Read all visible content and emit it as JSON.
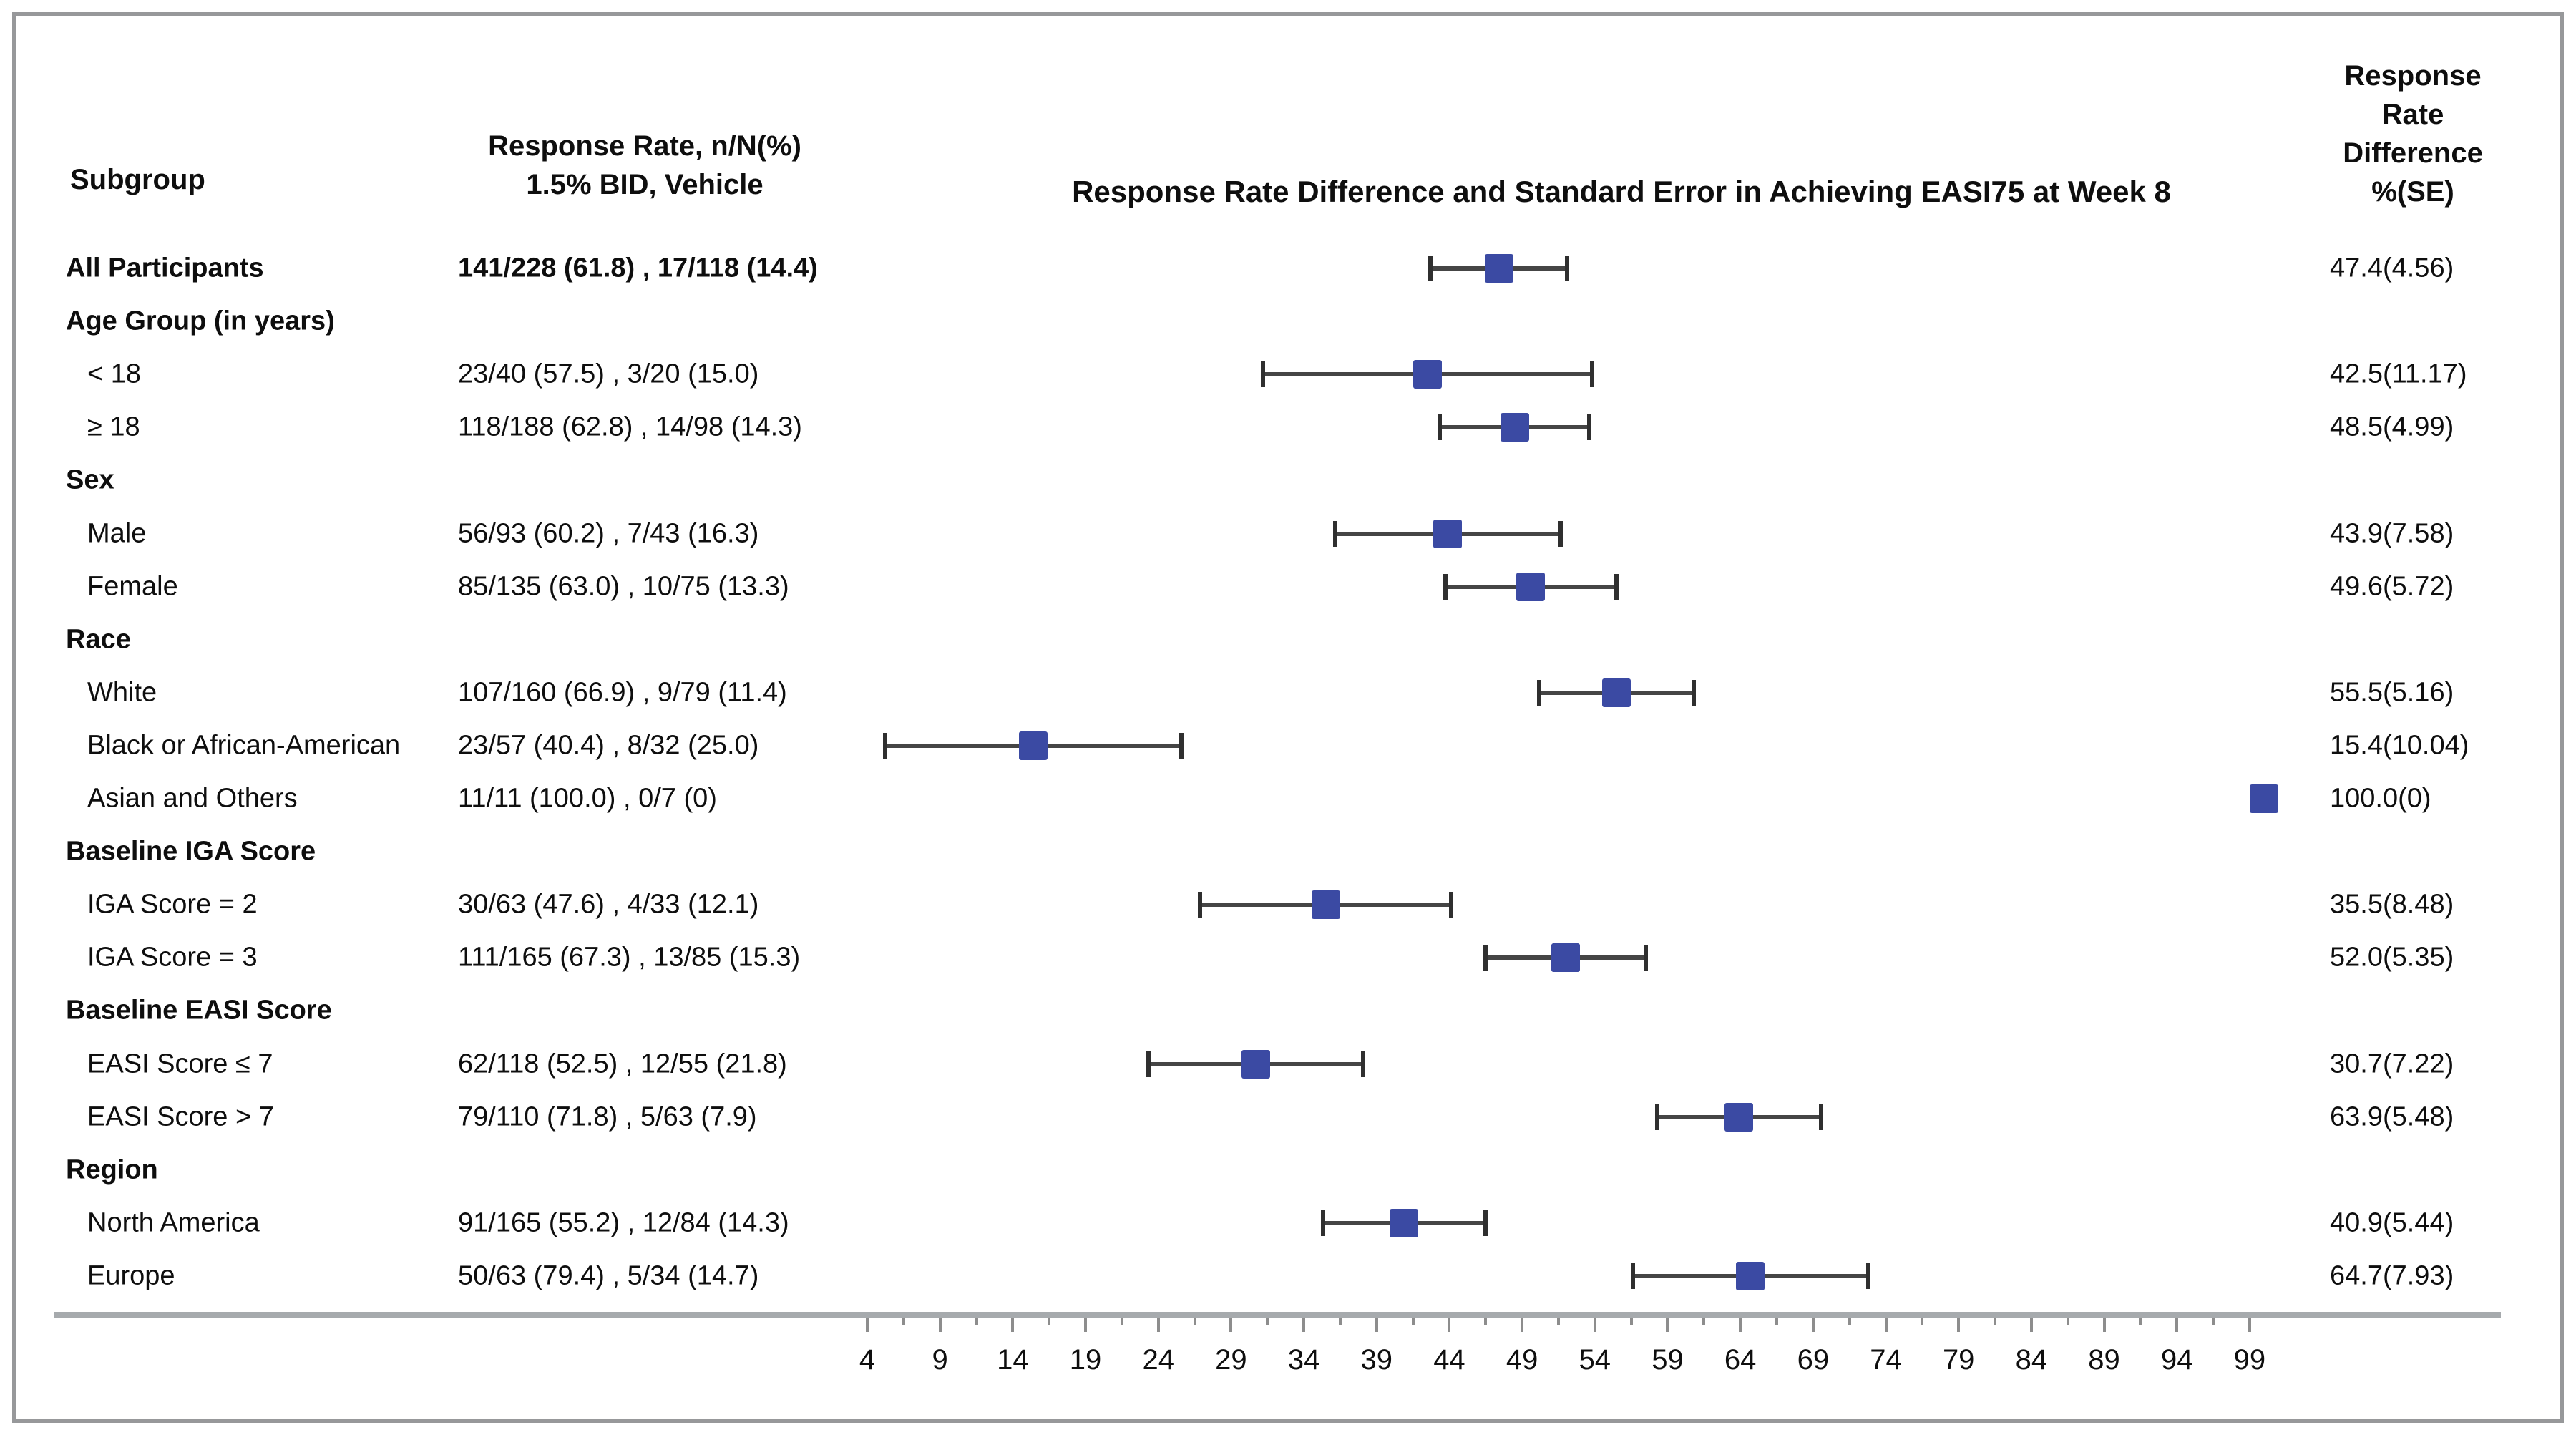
{
  "figure": {
    "headers": {
      "subgroup": "Subgroup",
      "rates_line1": "Response Rate, n/N(%)",
      "rates_line2": "1.5% BID, Vehicle",
      "plot_title": "Response Rate Difference and Standard Error in Achieving EASI75 at Week 8",
      "diff_lines": [
        "Response",
        "Rate",
        "Difference",
        "%(SE)"
      ]
    }
  },
  "chart_data": {
    "type": "forest",
    "title": "Response Rate Difference and Standard Error in Achieving EASI75 at Week 8",
    "columns": {
      "subgroup": "Subgroup",
      "rates": "Response Rate, n/N(%) 1.5% BID, Vehicle",
      "difference": "Response Rate Difference %(SE)"
    },
    "x_axis": {
      "ticks": [
        4,
        9,
        14,
        19,
        24,
        29,
        34,
        39,
        44,
        49,
        54,
        59,
        64,
        69,
        74,
        79,
        84,
        89,
        94,
        99
      ],
      "minor_ticks_at_midpoints": true,
      "plotted_range": [
        4,
        99
      ]
    },
    "error_bar_rule": "estimate ± 1 SE",
    "colors": {
      "marker": "#3b4aa3",
      "whisker": "#454545",
      "cap": "#2f2f2f",
      "axis_line": "#a6aaad",
      "tick": "#8d8d8d",
      "border": "#97989a",
      "text": "#0e0e0e"
    },
    "rows": [
      {
        "label": "All Participants",
        "type": "overall",
        "rates": "141/228 (61.8) , 17/118 (14.4)",
        "est": 47.4,
        "se": 4.56,
        "diff": "47.4(4.56)"
      },
      {
        "label": "Age Group (in years)",
        "type": "group",
        "rates": null,
        "est": null,
        "se": null,
        "diff": null
      },
      {
        "label": "< 18",
        "type": "item",
        "rates": "23/40 (57.5) , 3/20 (15.0)",
        "est": 42.5,
        "se": 11.17,
        "diff": "42.5(11.17)"
      },
      {
        "label": "≥ 18",
        "type": "item",
        "rates": "118/188 (62.8) , 14/98 (14.3)",
        "est": 48.5,
        "se": 4.99,
        "diff": "48.5(4.99)"
      },
      {
        "label": "Sex",
        "type": "group",
        "rates": null,
        "est": null,
        "se": null,
        "diff": null
      },
      {
        "label": "Male",
        "type": "item",
        "rates": "56/93 (60.2) , 7/43 (16.3)",
        "est": 43.9,
        "se": 7.58,
        "diff": "43.9(7.58)"
      },
      {
        "label": "Female",
        "type": "item",
        "rates": "85/135 (63.0) , 10/75 (13.3)",
        "est": 49.6,
        "se": 5.72,
        "diff": "49.6(5.72)"
      },
      {
        "label": "Race",
        "type": "group",
        "rates": null,
        "est": null,
        "se": null,
        "diff": null
      },
      {
        "label": "White",
        "type": "item",
        "rates": "107/160 (66.9) , 9/79 (11.4)",
        "est": 55.5,
        "se": 5.16,
        "diff": "55.5(5.16)"
      },
      {
        "label": "Black or African-American",
        "type": "item",
        "rates": "23/57 (40.4) , 8/32 (25.0)",
        "est": 15.4,
        "se": 10.04,
        "diff": "15.4(10.04)"
      },
      {
        "label": "Asian and Others",
        "type": "item",
        "rates": "11/11 (100.0) , 0/7 (0)",
        "est": 100.0,
        "se": 0,
        "diff": "100.0(0)"
      },
      {
        "label": "Baseline IGA Score",
        "type": "group",
        "rates": null,
        "est": null,
        "se": null,
        "diff": null
      },
      {
        "label": "IGA Score = 2",
        "type": "item",
        "rates": "30/63 (47.6) , 4/33 (12.1)",
        "est": 35.5,
        "se": 8.48,
        "diff": "35.5(8.48)"
      },
      {
        "label": "IGA Score = 3",
        "type": "item",
        "rates": "111/165 (67.3) , 13/85 (15.3)",
        "est": 52.0,
        "se": 5.35,
        "diff": "52.0(5.35)"
      },
      {
        "label": "Baseline EASI Score",
        "type": "group",
        "rates": null,
        "est": null,
        "se": null,
        "diff": null
      },
      {
        "label": "EASI Score ≤ 7",
        "type": "item",
        "rates": "62/118 (52.5) , 12/55 (21.8)",
        "est": 30.7,
        "se": 7.22,
        "diff": "30.7(7.22)"
      },
      {
        "label": "EASI Score > 7",
        "type": "item",
        "rates": "79/110 (71.8) , 5/63 (7.9)",
        "est": 63.9,
        "se": 5.48,
        "diff": "63.9(5.48)"
      },
      {
        "label": "Region",
        "type": "group",
        "rates": null,
        "est": null,
        "se": null,
        "diff": null
      },
      {
        "label": "North America",
        "type": "item",
        "rates": "91/165 (55.2) , 12/84 (14.3)",
        "est": 40.9,
        "se": 5.44,
        "diff": "40.9(5.44)"
      },
      {
        "label": "Europe",
        "type": "item",
        "rates": "50/63 (79.4) , 5/34 (14.7)",
        "est": 64.7,
        "se": 7.93,
        "diff": "64.7(7.93)"
      }
    ]
  }
}
